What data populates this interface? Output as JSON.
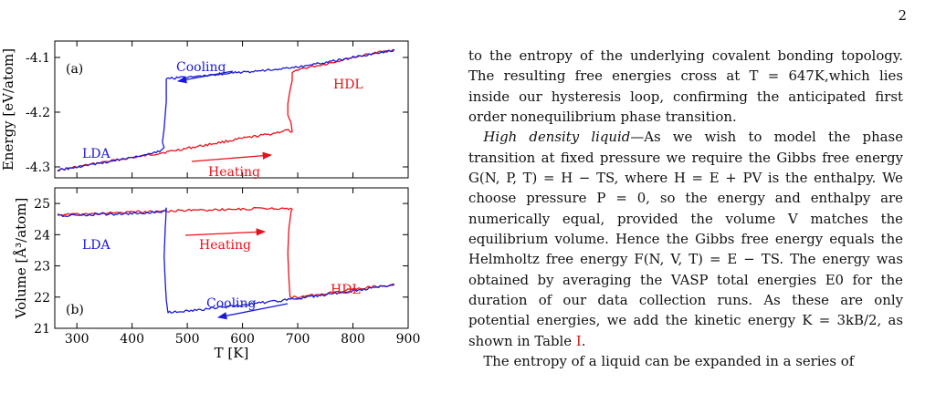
{
  "page": {
    "number": "2"
  },
  "figure": {
    "chart_data": [
      {
        "type": "line",
        "panel_label": "(a)",
        "ylabel": "Energy  [eV/atom]",
        "xlim": [
          260,
          900
        ],
        "ylim": [
          -4.32,
          -4.07
        ],
        "yticks": [
          -4.3,
          -4.2,
          -4.1
        ],
        "ytick_labels": [
          "-4.3",
          "-4.2",
          "-4.1"
        ],
        "xticks": [
          300,
          400,
          500,
          600,
          700,
          800,
          900
        ],
        "series": [
          {
            "name": "Heating",
            "color": "#e8111a",
            "points": [
              [
                265,
                -4.306
              ],
              [
                300,
                -4.3
              ],
              [
                350,
                -4.291
              ],
              [
                400,
                -4.283
              ],
              [
                450,
                -4.275
              ],
              [
                500,
                -4.266
              ],
              [
                550,
                -4.257
              ],
              [
                600,
                -4.248
              ],
              [
                650,
                -4.24
              ],
              [
                680,
                -4.233
              ],
              [
                690,
                -4.236
              ],
              [
                688,
                -4.22
              ],
              [
                682,
                -4.205
              ],
              [
                682,
                -4.185
              ],
              [
                686,
                -4.16
              ],
              [
                690,
                -4.142
              ],
              [
                690,
                -4.13
              ],
              [
                700,
                -4.122
              ],
              [
                750,
                -4.112
              ],
              [
                800,
                -4.1
              ],
              [
                850,
                -4.09
              ],
              [
                875,
                -4.086
              ]
            ]
          },
          {
            "name": "Cooling",
            "color": "#1a1ad6",
            "points": [
              [
                875,
                -4.087
              ],
              [
                800,
                -4.1
              ],
              [
                700,
                -4.118
              ],
              [
                600,
                -4.127
              ],
              [
                500,
                -4.136
              ],
              [
                462,
                -4.139
              ],
              [
                462,
                -4.15
              ],
              [
                462,
                -4.18
              ],
              [
                460,
                -4.205
              ],
              [
                458,
                -4.23
              ],
              [
                455,
                -4.255
              ],
              [
                458,
                -4.265
              ],
              [
                450,
                -4.272
              ],
              [
                420,
                -4.278
              ],
              [
                400,
                -4.283
              ],
              [
                350,
                -4.292
              ],
              [
                300,
                -4.3
              ],
              [
                265,
                -4.306
              ]
            ]
          }
        ],
        "annotations": [
          {
            "text": "Cooling",
            "color": "#1a1ad6"
          },
          {
            "text": "HDL",
            "color": "#e8111a"
          },
          {
            "text": "LDA",
            "color": "#1a1ad6"
          },
          {
            "text": "Heating",
            "color": "#e8111a"
          }
        ]
      },
      {
        "type": "line",
        "panel_label": "(b)",
        "ylabel": "Volume  [Å³/atom]",
        "xlabel": "T  [K]",
        "xlim": [
          260,
          900
        ],
        "ylim": [
          21,
          25.5
        ],
        "yticks": [
          21,
          22,
          23,
          24,
          25
        ],
        "ytick_labels": [
          "21",
          "22",
          "23",
          "24",
          "25"
        ],
        "xticks": [
          300,
          400,
          500,
          600,
          700,
          800,
          900
        ],
        "xtick_labels": [
          "300",
          "400",
          "500",
          "600",
          "700",
          "800",
          "900"
        ],
        "series": [
          {
            "name": "Heating",
            "color": "#e8111a",
            "points": [
              [
                265,
                24.65
              ],
              [
                300,
                24.65
              ],
              [
                400,
                24.72
              ],
              [
                500,
                24.78
              ],
              [
                600,
                24.82
              ],
              [
                670,
                24.85
              ],
              [
                690,
                24.82
              ],
              [
                688,
                24.75
              ],
              [
                684,
                24.2
              ],
              [
                682,
                23.4
              ],
              [
                684,
                22.6
              ],
              [
                686,
                22.0
              ],
              [
                700,
                22.0
              ],
              [
                750,
                22.1
              ],
              [
                800,
                22.25
              ],
              [
                850,
                22.35
              ],
              [
                875,
                22.4
              ]
            ]
          },
          {
            "name": "Cooling",
            "color": "#1a1ad6",
            "points": [
              [
                875,
                22.4
              ],
              [
                800,
                22.2
              ],
              [
                700,
                21.95
              ],
              [
                600,
                21.75
              ],
              [
                500,
                21.55
              ],
              [
                465,
                21.5
              ],
              [
                462,
                21.9
              ],
              [
                460,
                22.5
              ],
              [
                458,
                23.3
              ],
              [
                460,
                24.2
              ],
              [
                462,
                24.85
              ],
              [
                460,
                24.75
              ],
              [
                440,
                24.72
              ],
              [
                400,
                24.68
              ],
              [
                350,
                24.65
              ],
              [
                300,
                24.62
              ],
              [
                265,
                24.62
              ]
            ]
          }
        ],
        "annotations": [
          {
            "text": "LDA",
            "color": "#1a1ad6"
          },
          {
            "text": "Heating",
            "color": "#e8111a"
          },
          {
            "text": "HDL",
            "color": "#e8111a"
          },
          {
            "text": "Cooling",
            "color": "#1a1ad6"
          }
        ]
      }
    ]
  },
  "text": {
    "p1": "to the entropy of the underlying covalent bonding topology. The resulting free energies cross at T = 647K,which lies inside our hysteresis loop, confirming the anticipated first order nonequilibrium phase transition.",
    "p2_runin": "High density liquid",
    "p2_a": "—As we wish to model the phase transition at fixed pressure we require the Gibbs free energy G(N, P, T) = H − TS, where H = E + PV is the enthalpy. We choose pressure P = 0, so the energy and enthalpy are numerically equal, provided the volume V matches the equilibrium volume. Hence the Gibbs free energy equals the Helmholtz free energy F(N, V, T) = E − TS. The energy was obtained by averaging the VASP total energies E0 for the duration of our data collection runs. As these are only potential energies, we add the kinetic energy K = 3kB/2, as shown in Table ",
    "p2_ref": "I",
    "p2_end": ".",
    "p3": "The entropy of a liquid can be expanded in a series of"
  }
}
